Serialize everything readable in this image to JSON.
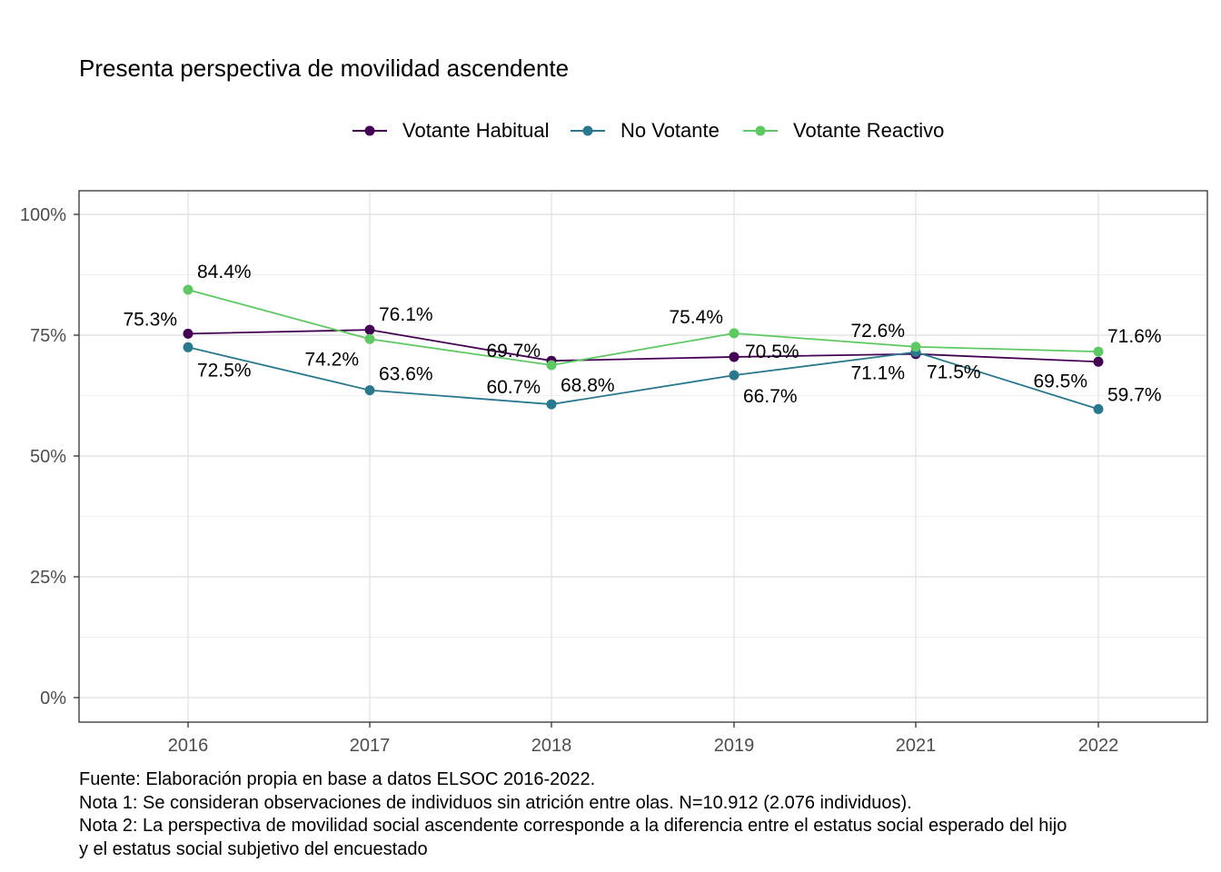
{
  "chart_data": {
    "type": "line",
    "title": "Presenta perspectiva de movilidad ascendente",
    "xlabel": "",
    "ylabel": "",
    "categories": [
      "2016",
      "2017",
      "2018",
      "2019",
      "2021",
      "2022"
    ],
    "ylim": [
      0,
      100
    ],
    "yticks": [
      "0%",
      "25%",
      "50%",
      "75%",
      "100%"
    ],
    "grid": true,
    "legend_position": "top",
    "series": [
      {
        "name": "Votante Habitual",
        "color": "#440154",
        "values": [
          75.3,
          76.1,
          69.7,
          70.5,
          71.1,
          69.5
        ],
        "labels": [
          "75.3%",
          "76.1%",
          "69.7%",
          "70.5%",
          "71.1%",
          "69.5%"
        ]
      },
      {
        "name": "No Votante",
        "color": "#2A788E",
        "values": [
          72.5,
          63.6,
          60.7,
          66.7,
          71.5,
          59.7
        ],
        "labels": [
          "72.5%",
          "63.6%",
          "60.7%",
          "66.7%",
          "71.5%",
          "59.7%"
        ]
      },
      {
        "name": "Votante Reactivo",
        "color": "#5EC962",
        "values": [
          84.4,
          74.2,
          68.8,
          75.4,
          72.6,
          71.6
        ],
        "labels": [
          "84.4%",
          "74.2%",
          "68.8%",
          "75.4%",
          "72.6%",
          "71.6%"
        ]
      }
    ]
  },
  "caption": {
    "line1": "Fuente: Elaboración propia en base a datos ELSOC 2016-2022.",
    "line2": "Nota 1: Se consideran observaciones de individuos sin atrición entre olas. N=10.912 (2.076 individuos).",
    "line3": "Nota 2: La perspectiva de movilidad social ascendente corresponde a la diferencia entre el estatus social esperado del hijo",
    "line4": "y el estatus social subjetivo del encuestado"
  }
}
